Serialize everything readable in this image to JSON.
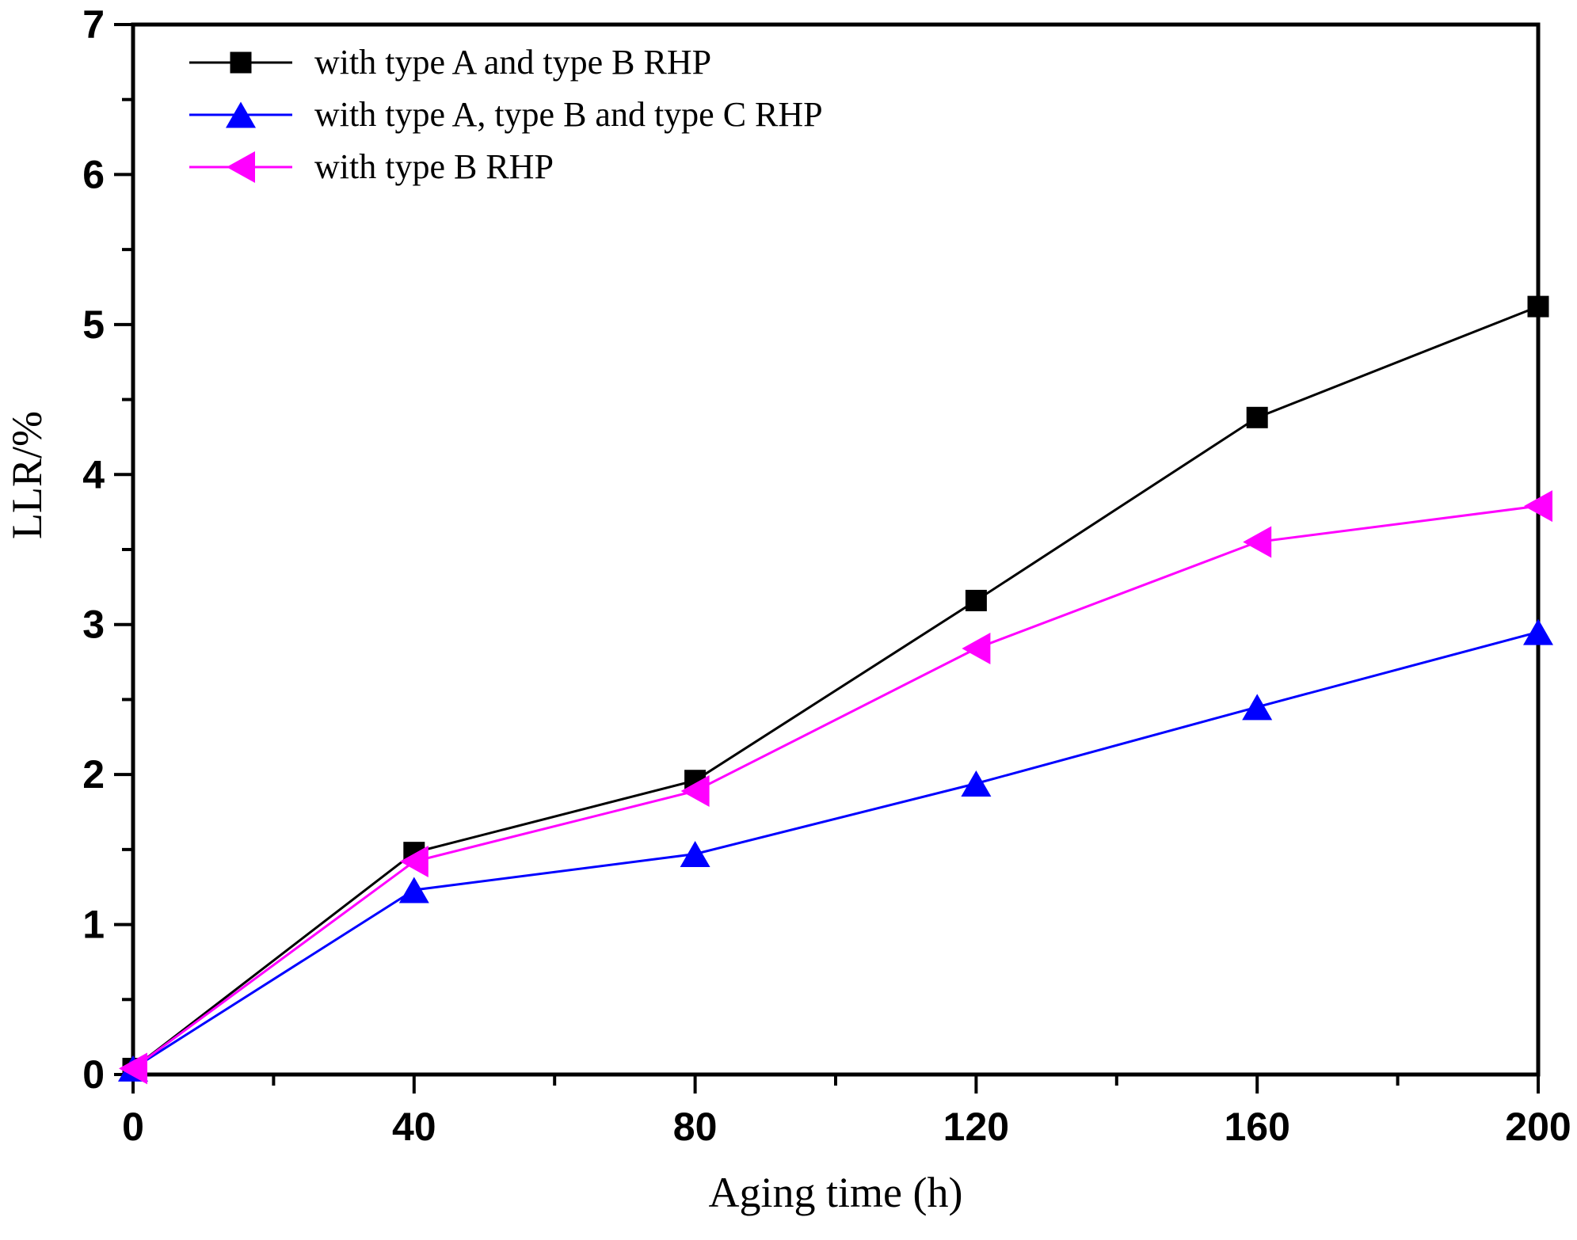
{
  "figure": {
    "background": "#ffffff",
    "axis_color": "#000000"
  },
  "chart_data": {
    "type": "line",
    "title": "",
    "xlabel": "Aging time (h)",
    "ylabel": "LLR/%",
    "xlim": [
      0,
      200
    ],
    "ylim": [
      0,
      7
    ],
    "x_ticks": [
      0,
      40,
      80,
      120,
      160,
      200
    ],
    "y_ticks": [
      0,
      1,
      2,
      3,
      4,
      5,
      6,
      7
    ],
    "x_minor_tick_step": 20,
    "y_minor_tick_step": 0.5,
    "grid": false,
    "legend_position": "top-left-inside",
    "x": [
      0,
      40,
      80,
      120,
      160,
      200
    ],
    "series": [
      {
        "name": "with type A and type B RHP",
        "color": "#000000",
        "marker": "square",
        "values": [
          0.04,
          1.48,
          1.96,
          3.16,
          4.38,
          5.12
        ]
      },
      {
        "name": "with type A, type B and type C RHP",
        "color": "#0000ff",
        "marker": "triangle-up",
        "values": [
          0.04,
          1.23,
          1.47,
          1.94,
          2.45,
          2.95
        ]
      },
      {
        "name": "with type B RHP",
        "color": "#ff00ff",
        "marker": "triangle-left",
        "values": [
          0.04,
          1.42,
          1.89,
          2.84,
          3.55,
          3.79
        ]
      }
    ]
  }
}
